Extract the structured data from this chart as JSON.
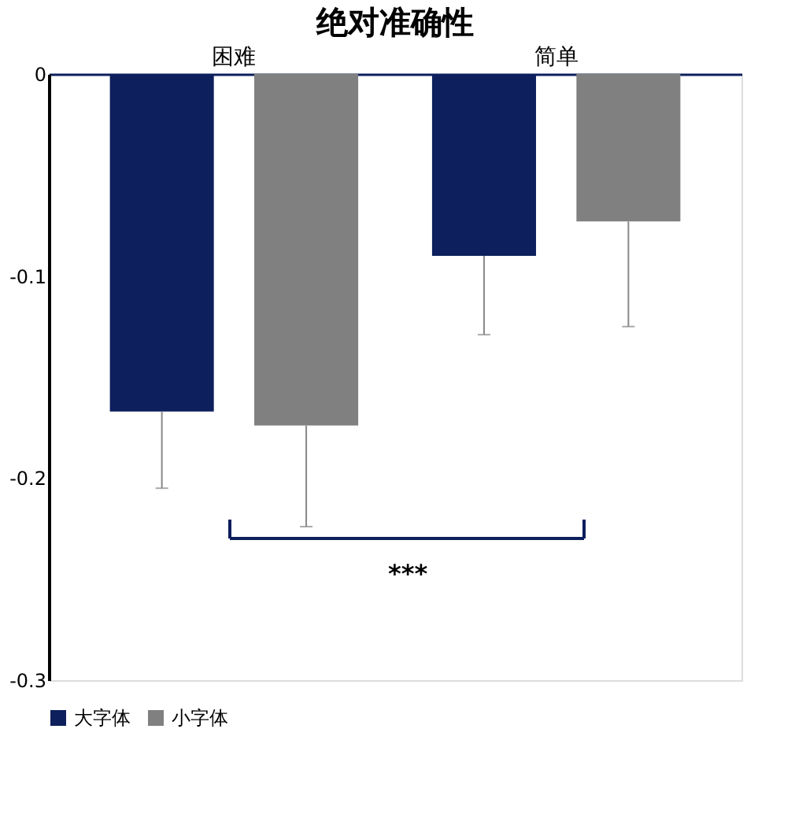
{
  "chart_data": {
    "type": "bar",
    "title": "绝对准确性",
    "categories": [
      "困难",
      "简单"
    ],
    "series": [
      {
        "name": "大字体",
        "color": "#0d1f5c",
        "values": [
          -0.167,
          -0.09
        ],
        "errors": [
          [
            -0.205,
            -0.167
          ],
          [
            -0.129,
            -0.09
          ]
        ]
      },
      {
        "name": "小字体",
        "color": "#808080",
        "values": [
          -0.174,
          -0.073
        ],
        "errors": [
          [
            -0.224,
            -0.174
          ],
          [
            -0.125,
            -0.073
          ]
        ]
      }
    ],
    "ylim": [
      -0.3,
      0
    ],
    "yticks": [
      0,
      -0.1,
      -0.2,
      -0.3
    ],
    "grid": false,
    "legend": "bottom",
    "annotations": [
      "***"
    ]
  }
}
